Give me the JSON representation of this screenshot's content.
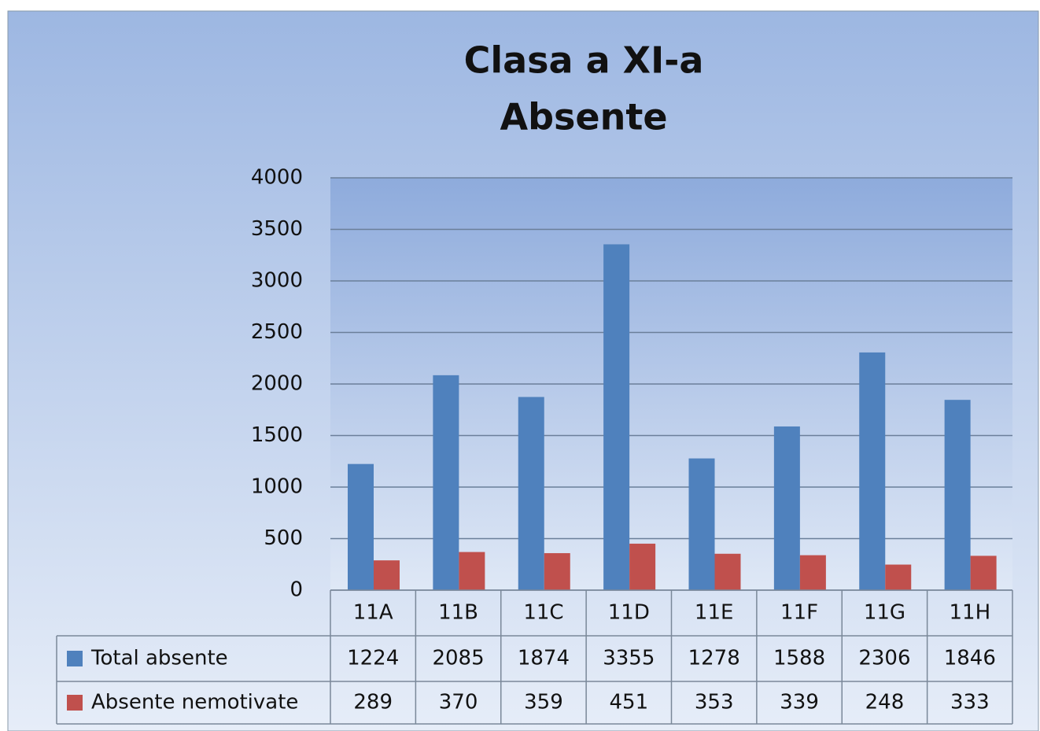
{
  "chart_data": {
    "type": "bar",
    "title": [
      "Clasa a XI-a",
      "Absente"
    ],
    "categories": [
      "11A",
      "11B",
      "11C",
      "11D",
      "11E",
      "11F",
      "11G",
      "11H"
    ],
    "series": [
      {
        "name": "Total absente",
        "color": "#4f81bd",
        "values": [
          1224,
          2085,
          1874,
          3355,
          1278,
          1588,
          2306,
          1846
        ]
      },
      {
        "name": "Absente nemotivate",
        "color": "#c0504d",
        "values": [
          289,
          370,
          359,
          451,
          353,
          339,
          248,
          333
        ]
      }
    ],
    "ylim": [
      0,
      4000
    ],
    "yticks": [
      0,
      500,
      1000,
      1500,
      2000,
      2500,
      3000,
      3500,
      4000
    ],
    "grid": true
  }
}
